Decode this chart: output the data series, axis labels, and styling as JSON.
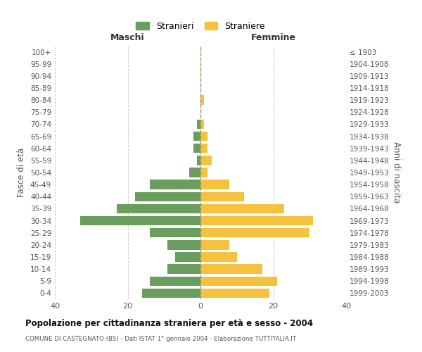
{
  "age_groups": [
    "0-4",
    "5-9",
    "10-14",
    "15-19",
    "20-24",
    "25-29",
    "30-34",
    "35-39",
    "40-44",
    "45-49",
    "50-54",
    "55-59",
    "60-64",
    "65-69",
    "70-74",
    "75-79",
    "80-84",
    "85-89",
    "90-94",
    "95-99",
    "100+"
  ],
  "birth_years": [
    "1999-2003",
    "1994-1998",
    "1989-1993",
    "1984-1988",
    "1979-1983",
    "1974-1978",
    "1969-1973",
    "1964-1968",
    "1959-1963",
    "1954-1958",
    "1949-1953",
    "1944-1948",
    "1939-1943",
    "1934-1938",
    "1929-1933",
    "1924-1928",
    "1919-1923",
    "1914-1918",
    "1909-1913",
    "1904-1908",
    "≤ 1903"
  ],
  "maschi": [
    16,
    14,
    9,
    7,
    9,
    14,
    33,
    23,
    18,
    14,
    3,
    1,
    2,
    2,
    1,
    0,
    0,
    0,
    0,
    0,
    0
  ],
  "femmine": [
    19,
    21,
    17,
    10,
    8,
    30,
    31,
    23,
    12,
    8,
    2,
    3,
    2,
    2,
    1,
    0,
    1,
    0,
    0,
    0,
    0
  ],
  "color_maschi": "#6a9e5f",
  "color_femmine": "#f5c240",
  "title": "Popolazione per cittadinanza straniera per età e sesso - 2004",
  "subtitle": "COMUNE DI CASTEGNATO (BS) - Dati ISTAT 1° gennaio 2004 - Elaborazione TUTTITALIA.IT",
  "xlabel_left": "Maschi",
  "xlabel_right": "Femmine",
  "ylabel_left": "Fasce di età",
  "ylabel_right": "Anni di nascita",
  "legend_maschi": "Stranieri",
  "legend_femmine": "Straniere",
  "xlim": 40,
  "background_color": "#ffffff",
  "grid_color": "#cccccc"
}
